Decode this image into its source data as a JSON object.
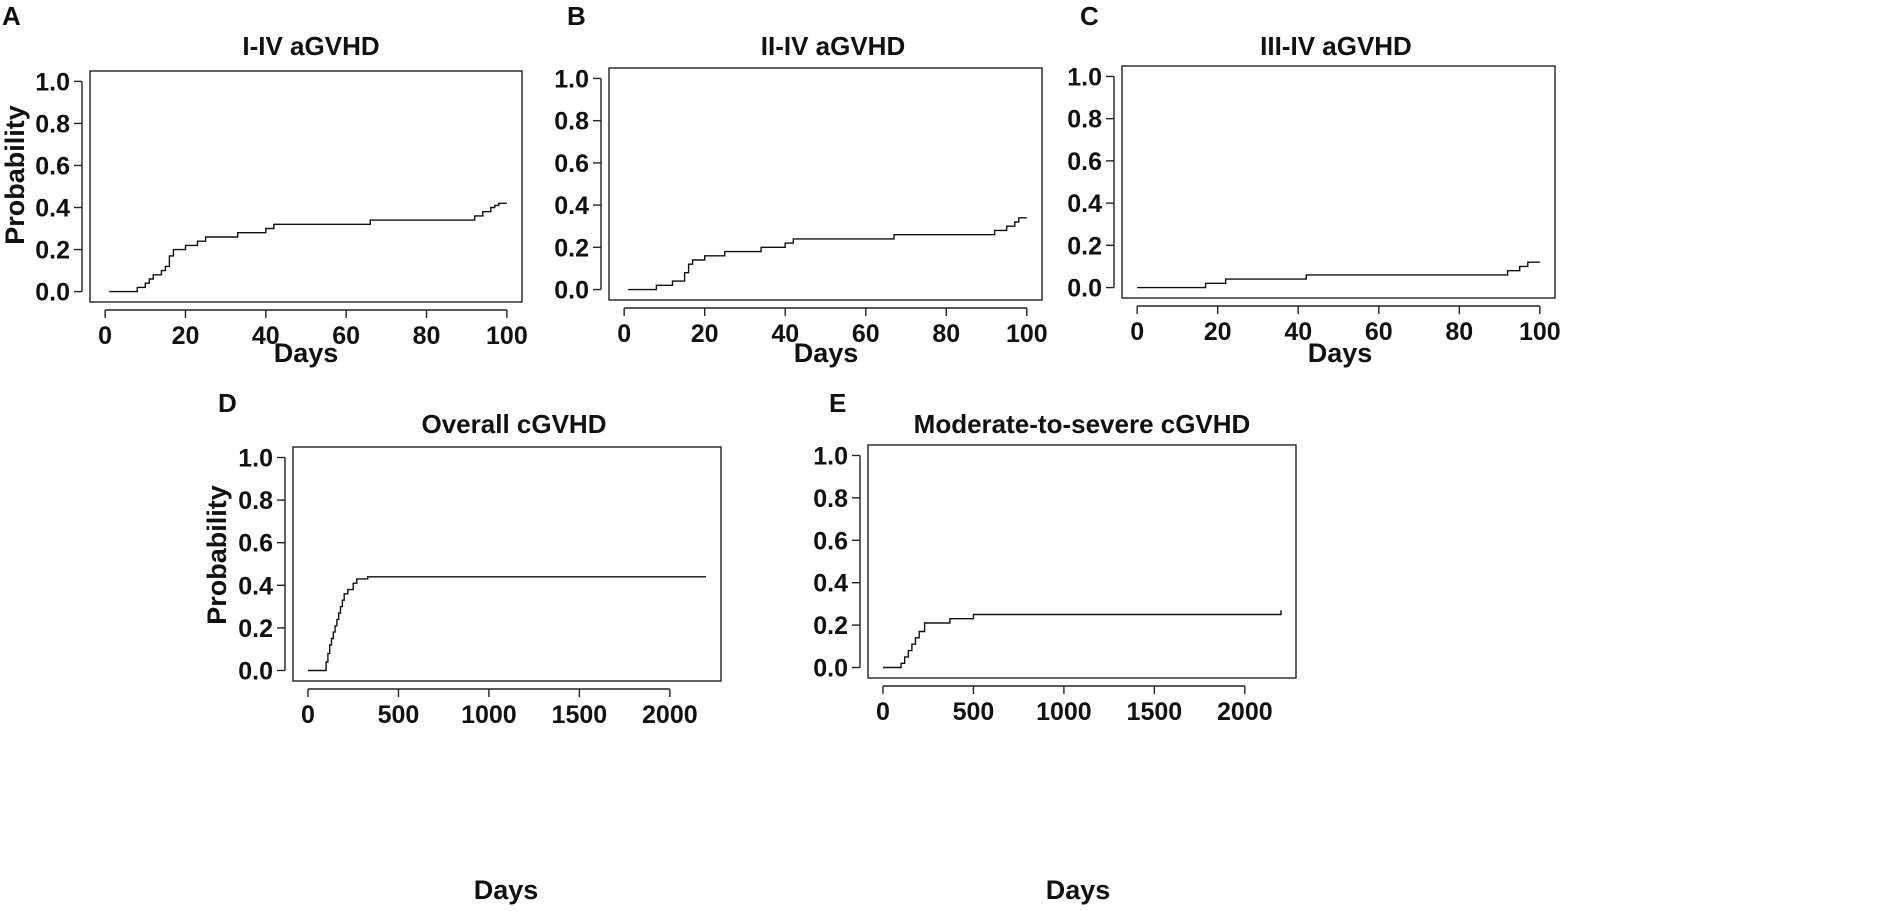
{
  "figure": {
    "panels": [
      "A",
      "B",
      "C",
      "D",
      "E"
    ]
  },
  "chart_data": [
    {
      "letter": "A",
      "type": "line",
      "step": true,
      "title": "I-IV aGVHD",
      "xlabel": "Days",
      "ylabel": "Probability",
      "xlim": [
        0,
        100
      ],
      "ylim": [
        0,
        1
      ],
      "xticks": [
        0,
        20,
        40,
        60,
        80,
        100
      ],
      "xtick_labels": [
        "0",
        "20",
        "40",
        "60",
        "80",
        "100"
      ],
      "yticks": [
        0,
        0.2,
        0.4,
        0.6,
        0.8,
        1.0
      ],
      "ytick_labels": [
        "0.0",
        "0.2",
        "0.4",
        "0.6",
        "0.8",
        "1.0"
      ],
      "series": [
        {
          "name": "I-IV aGVHD",
          "x": [
            1,
            8,
            10,
            11,
            12,
            14,
            15,
            16,
            17,
            20,
            23,
            25,
            33,
            40,
            42,
            66,
            92,
            94,
            96,
            97,
            98,
            100
          ],
          "y": [
            0,
            0.02,
            0.04,
            0.06,
            0.08,
            0.1,
            0.12,
            0.17,
            0.2,
            0.22,
            0.24,
            0.26,
            0.28,
            0.3,
            0.32,
            0.34,
            0.36,
            0.38,
            0.4,
            0.41,
            0.42,
            0.42
          ]
        }
      ]
    },
    {
      "letter": "B",
      "type": "line",
      "step": true,
      "title": "II-IV aGVHD",
      "xlabel": "Days",
      "ylabel": "",
      "xlim": [
        0,
        100
      ],
      "ylim": [
        0,
        1
      ],
      "xticks": [
        0,
        20,
        40,
        60,
        80,
        100
      ],
      "xtick_labels": [
        "0",
        "20",
        "40",
        "60",
        "80",
        "100"
      ],
      "yticks": [
        0,
        0.2,
        0.4,
        0.6,
        0.8,
        1.0
      ],
      "ytick_labels": [
        "0.0",
        "0.2",
        "0.4",
        "0.6",
        "0.8",
        "1.0"
      ],
      "series": [
        {
          "name": "II-IV aGVHD",
          "x": [
            1,
            8,
            12,
            15,
            16,
            17,
            20,
            25,
            34,
            40,
            42,
            67,
            92,
            95,
            97,
            98,
            100
          ],
          "y": [
            0,
            0.02,
            0.04,
            0.08,
            0.12,
            0.14,
            0.16,
            0.18,
            0.2,
            0.22,
            0.24,
            0.26,
            0.28,
            0.3,
            0.32,
            0.34,
            0.34
          ]
        }
      ]
    },
    {
      "letter": "C",
      "type": "line",
      "step": true,
      "title": "III-IV aGVHD",
      "xlabel": "Days",
      "ylabel": "",
      "xlim": [
        0,
        100
      ],
      "ylim": [
        0,
        1
      ],
      "xticks": [
        0,
        20,
        40,
        60,
        80,
        100
      ],
      "xtick_labels": [
        "0",
        "20",
        "40",
        "60",
        "80",
        "100"
      ],
      "yticks": [
        0,
        0.2,
        0.4,
        0.6,
        0.8,
        1.0
      ],
      "ytick_labels": [
        "0.0",
        "0.2",
        "0.4",
        "0.6",
        "0.8",
        "1.0"
      ],
      "series": [
        {
          "name": "III-IV aGVHD",
          "x": [
            0,
            17,
            22,
            42,
            92,
            95,
            97,
            100
          ],
          "y": [
            0,
            0.02,
            0.04,
            0.06,
            0.08,
            0.1,
            0.12,
            0.12
          ]
        }
      ]
    },
    {
      "letter": "D",
      "type": "line",
      "step": true,
      "title": "Overall cGVHD",
      "xlabel": "Days",
      "ylabel": "Probability",
      "xlim": [
        0,
        2200
      ],
      "ylim": [
        0,
        1
      ],
      "xticks": [
        0,
        500,
        1000,
        1500,
        2000
      ],
      "xtick_labels": [
        "0",
        "500",
        "1000",
        "1500",
        "2000"
      ],
      "yticks": [
        0,
        0.2,
        0.4,
        0.6,
        0.8,
        1.0
      ],
      "ytick_labels": [
        "0.0",
        "0.2",
        "0.4",
        "0.6",
        "0.8",
        "1.0"
      ],
      "series": [
        {
          "name": "Overall cGVHD",
          "x": [
            0,
            100,
            110,
            120,
            130,
            140,
            150,
            160,
            170,
            180,
            190,
            200,
            220,
            250,
            270,
            330,
            2200
          ],
          "y": [
            0,
            0.04,
            0.08,
            0.12,
            0.15,
            0.18,
            0.21,
            0.24,
            0.27,
            0.3,
            0.33,
            0.36,
            0.38,
            0.41,
            0.43,
            0.44,
            0.44
          ]
        }
      ]
    },
    {
      "letter": "E",
      "type": "line",
      "step": true,
      "title": "Moderate-to-severe cGVHD",
      "xlabel": "Days",
      "ylabel": "",
      "xlim": [
        0,
        2200
      ],
      "ylim": [
        0,
        1
      ],
      "xticks": [
        0,
        500,
        1000,
        1500,
        2000
      ],
      "xtick_labels": [
        "0",
        "500",
        "1000",
        "1500",
        "2000"
      ],
      "yticks": [
        0,
        0.2,
        0.4,
        0.6,
        0.8,
        1.0
      ],
      "ytick_labels": [
        "0.0",
        "0.2",
        "0.4",
        "0.6",
        "0.8",
        "1.0"
      ],
      "series": [
        {
          "name": "Moderate-to-severe cGVHD",
          "x": [
            0,
            100,
            120,
            140,
            160,
            180,
            200,
            230,
            370,
            500,
            2200
          ],
          "y": [
            0,
            0.02,
            0.05,
            0.08,
            0.11,
            0.14,
            0.17,
            0.21,
            0.23,
            0.25,
            0.27
          ]
        }
      ]
    }
  ]
}
